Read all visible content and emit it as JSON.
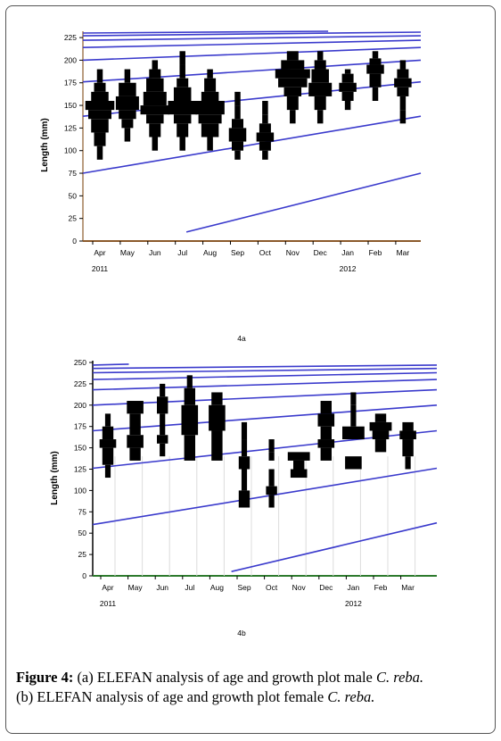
{
  "caption": {
    "figure_label": "Figure 4:",
    "line1_text": " (a) ELEFAN analysis of age and growth plot male ",
    "line1_species": "C. reba.",
    "line2_text": "(b) ELEFAN analysis of age and growth plot female ",
    "line2_species": "C. reba."
  },
  "colors": {
    "curve": "#3a3acc",
    "bar": "#000000",
    "axis_a": "#8b5a2b",
    "axis_b": "#2d7a2d"
  },
  "chart_data": [
    {
      "type": "bar",
      "panel_label": "4a",
      "ylabel": "Length (mm)",
      "yticks": [
        0,
        25,
        50,
        75,
        100,
        125,
        150,
        175,
        200,
        225
      ],
      "ylim": [
        0,
        232
      ],
      "xlim": [
        0,
        12.4
      ],
      "months": [
        "Apr",
        "May",
        "Jun",
        "Jul",
        "Aug",
        "Sep",
        "Oct",
        "Nov",
        "Dec",
        "Jan",
        "Feb",
        "Mar"
      ],
      "years": [
        {
          "label": "2011",
          "month": 0
        },
        {
          "label": "2012",
          "month": 9
        }
      ],
      "growth_curves": [
        [
          [
            0,
            75
          ],
          [
            12.4,
            138
          ]
        ],
        [
          [
            3.8,
            10
          ],
          [
            12.4,
            75
          ]
        ],
        [
          [
            0,
            138
          ],
          [
            12.4,
            176
          ]
        ],
        [
          [
            0,
            176
          ],
          [
            12.4,
            200
          ]
        ],
        [
          [
            0,
            200
          ],
          [
            12.4,
            214
          ]
        ],
        [
          [
            0,
            214
          ],
          [
            12.4,
            222
          ]
        ],
        [
          [
            0,
            222
          ],
          [
            12.4,
            227
          ]
        ],
        [
          [
            0,
            227
          ],
          [
            12.4,
            231
          ]
        ],
        [
          [
            0,
            230
          ],
          [
            9,
            232
          ]
        ]
      ],
      "histograms": [
        {
          "month": 0,
          "bins": [
            [
              90,
              105,
              1
            ],
            [
              105,
              120,
              2
            ],
            [
              120,
              135,
              3
            ],
            [
              135,
              145,
              4
            ],
            [
              145,
              155,
              5
            ],
            [
              155,
              165,
              3
            ],
            [
              165,
              175,
              2
            ],
            [
              175,
              190,
              1
            ]
          ]
        },
        {
          "month": 1,
          "bins": [
            [
              110,
              125,
              1
            ],
            [
              125,
              135,
              2
            ],
            [
              135,
              145,
              3
            ],
            [
              145,
              160,
              4
            ],
            [
              160,
              175,
              3
            ],
            [
              175,
              190,
              1
            ]
          ]
        },
        {
          "month": 2,
          "bins": [
            [
              100,
              115,
              1
            ],
            [
              115,
              130,
              2
            ],
            [
              130,
              140,
              3
            ],
            [
              140,
              150,
              5
            ],
            [
              150,
              165,
              4
            ],
            [
              165,
              180,
              3
            ],
            [
              180,
              190,
              2
            ],
            [
              190,
              200,
              1
            ]
          ]
        },
        {
          "month": 3,
          "bins": [
            [
              100,
              115,
              1
            ],
            [
              115,
              130,
              2
            ],
            [
              130,
              140,
              3
            ],
            [
              140,
              155,
              5
            ],
            [
              155,
              170,
              3
            ],
            [
              170,
              180,
              2
            ],
            [
              180,
              195,
              1
            ],
            [
              195,
              210,
              1
            ]
          ]
        },
        {
          "month": 4,
          "bins": [
            [
              100,
              115,
              1
            ],
            [
              115,
              130,
              3
            ],
            [
              130,
              140,
              4
            ],
            [
              140,
              155,
              5
            ],
            [
              155,
              165,
              3
            ],
            [
              165,
              180,
              2
            ],
            [
              180,
              190,
              1
            ]
          ]
        },
        {
          "month": 5,
          "bins": [
            [
              90,
              100,
              1
            ],
            [
              100,
              110,
              2
            ],
            [
              110,
              125,
              3
            ],
            [
              125,
              135,
              2
            ],
            [
              135,
              150,
              1
            ],
            [
              150,
              165,
              1
            ]
          ]
        },
        {
          "month": 6,
          "bins": [
            [
              90,
              100,
              1
            ],
            [
              100,
              110,
              2
            ],
            [
              110,
              120,
              3
            ],
            [
              120,
              130,
              2
            ],
            [
              130,
              140,
              1
            ],
            [
              140,
              155,
              1
            ]
          ]
        },
        {
          "month": 7,
          "bins": [
            [
              130,
              145,
              1
            ],
            [
              145,
              160,
              2
            ],
            [
              160,
              170,
              3
            ],
            [
              170,
              180,
              5
            ],
            [
              180,
              190,
              6
            ],
            [
              190,
              200,
              4
            ],
            [
              200,
              210,
              2
            ]
          ]
        },
        {
          "month": 8,
          "bins": [
            [
              130,
              145,
              1
            ],
            [
              145,
              160,
              2
            ],
            [
              160,
              175,
              4
            ],
            [
              175,
              190,
              3
            ],
            [
              190,
              200,
              2
            ],
            [
              200,
              210,
              1
            ]
          ]
        },
        {
          "month": 9,
          "bins": [
            [
              145,
              155,
              1
            ],
            [
              155,
              165,
              2
            ],
            [
              165,
              175,
              3
            ],
            [
              175,
              185,
              2
            ],
            [
              185,
              190,
              1
            ]
          ]
        },
        {
          "month": 10,
          "bins": [
            [
              155,
              170,
              1
            ],
            [
              170,
              185,
              2
            ],
            [
              185,
              195,
              3
            ],
            [
              195,
              202,
              2
            ],
            [
              202,
              210,
              1
            ]
          ]
        },
        {
          "month": 11,
          "bins": [
            [
              130,
              145,
              1
            ],
            [
              145,
              160,
              1
            ],
            [
              160,
              170,
              2
            ],
            [
              170,
              180,
              3
            ],
            [
              180,
              190,
              2
            ],
            [
              190,
              200,
              1
            ]
          ]
        }
      ]
    },
    {
      "type": "bar",
      "panel_label": "4b",
      "ylabel": "Length (mm)",
      "yticks": [
        0,
        25,
        50,
        75,
        100,
        125,
        150,
        175,
        200,
        225,
        250
      ],
      "ylim": [
        0,
        250
      ],
      "xlim": [
        0,
        12.4
      ],
      "months": [
        "Apr",
        "May",
        "Jun",
        "Jul",
        "Aug",
        "Sep",
        "Oct",
        "Nov",
        "Dec",
        "Jan",
        "Feb",
        "Mar"
      ],
      "years": [
        {
          "label": "2011",
          "month": 0
        },
        {
          "label": "2012",
          "month": 9
        }
      ],
      "growth_curves": [
        [
          [
            0,
            60
          ],
          [
            12.4,
            126
          ]
        ],
        [
          [
            5.0,
            5
          ],
          [
            12.4,
            62
          ]
        ],
        [
          [
            0,
            126
          ],
          [
            12.4,
            170
          ]
        ],
        [
          [
            0,
            170
          ],
          [
            12.4,
            200
          ]
        ],
        [
          [
            0,
            200
          ],
          [
            12.4,
            218
          ]
        ],
        [
          [
            0,
            218
          ],
          [
            12.4,
            230
          ]
        ],
        [
          [
            0,
            230
          ],
          [
            12.4,
            238
          ]
        ],
        [
          [
            0,
            238
          ],
          [
            12.4,
            243
          ]
        ],
        [
          [
            0,
            243
          ],
          [
            12.4,
            247
          ]
        ],
        [
          [
            0,
            247
          ],
          [
            1.3,
            248
          ]
        ]
      ],
      "histograms": [
        {
          "month": 0,
          "bins": [
            [
              115,
              130,
              1
            ],
            [
              130,
              150,
              2
            ],
            [
              150,
              160,
              3
            ],
            [
              160,
              175,
              2
            ],
            [
              175,
              190,
              1
            ]
          ]
        },
        {
          "month": 1,
          "bins": [
            [
              135,
              150,
              2
            ],
            [
              150,
              165,
              3
            ],
            [
              165,
              190,
              2
            ],
            [
              190,
              205,
              3
            ]
          ]
        },
        {
          "month": 2,
          "bins": [
            [
              140,
              155,
              1
            ],
            [
              155,
              165,
              2
            ],
            [
              165,
              190,
              1
            ],
            [
              190,
              210,
              2
            ],
            [
              210,
              225,
              1
            ]
          ]
        },
        {
          "month": 3,
          "bins": [
            [
              135,
              165,
              2
            ],
            [
              165,
              200,
              3
            ],
            [
              200,
              220,
              2
            ],
            [
              220,
              235,
              1
            ]
          ]
        },
        {
          "month": 4,
          "bins": [
            [
              135,
              170,
              2
            ],
            [
              170,
              200,
              3
            ],
            [
              200,
              215,
              2
            ]
          ]
        },
        {
          "month": 5,
          "bins": [
            [
              80,
              100,
              2
            ],
            [
              100,
              125,
              1
            ],
            [
              125,
              140,
              2
            ],
            [
              140,
              160,
              1
            ],
            [
              160,
              180,
              1
            ]
          ]
        },
        {
          "month": 6,
          "bins": [
            [
              80,
              95,
              1
            ],
            [
              95,
              105,
              2
            ],
            [
              105,
              125,
              1
            ],
            [
              135,
              145,
              1
            ],
            [
              145,
              160,
              1
            ]
          ]
        },
        {
          "month": 7,
          "bins": [
            [
              115,
              125,
              3
            ],
            [
              125,
              135,
              2
            ],
            [
              135,
              145,
              4
            ]
          ]
        },
        {
          "month": 8,
          "bins": [
            [
              135,
              150,
              2
            ],
            [
              150,
              160,
              3
            ],
            [
              160,
              175,
              2
            ],
            [
              175,
              190,
              3
            ],
            [
              190,
              205,
              2
            ]
          ]
        },
        {
          "month": 9,
          "bins": [
            [
              125,
              140,
              3
            ],
            [
              160,
              175,
              4
            ],
            [
              175,
              200,
              1
            ],
            [
              200,
              215,
              1
            ]
          ]
        },
        {
          "month": 10,
          "bins": [
            [
              145,
              160,
              2
            ],
            [
              160,
              170,
              3
            ],
            [
              170,
              180,
              4
            ],
            [
              180,
              190,
              2
            ]
          ]
        },
        {
          "month": 11,
          "bins": [
            [
              125,
              140,
              1
            ],
            [
              140,
              160,
              2
            ],
            [
              160,
              170,
              3
            ],
            [
              170,
              180,
              2
            ]
          ]
        }
      ]
    }
  ]
}
